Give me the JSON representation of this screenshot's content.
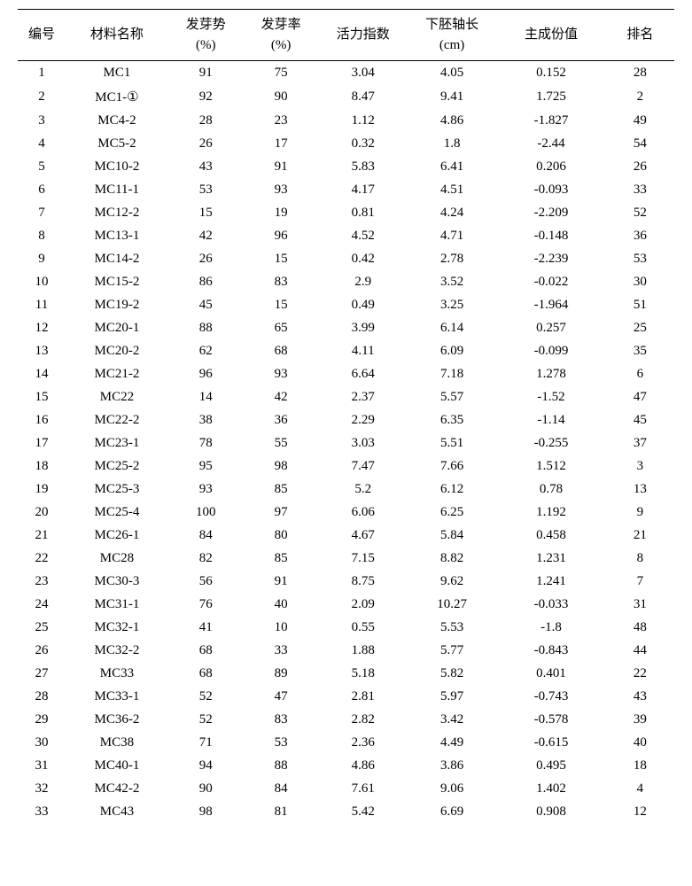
{
  "table": {
    "headers": {
      "idx": "编号",
      "name": "材料名称",
      "gp": "发芽势\n(%)",
      "gr": "发芽率\n(%)",
      "vi": "活力指数",
      "hl": "下胚轴长\n(cm)",
      "pc": "主成份值",
      "rank": "排名"
    },
    "rows": [
      {
        "idx": "1",
        "name": "MC1",
        "gp": "91",
        "gr": "75",
        "vi": "3.04",
        "hl": "4.05",
        "pc": "0.152",
        "rank": "28"
      },
      {
        "idx": "2",
        "name": "MC1-①",
        "gp": "92",
        "gr": "90",
        "vi": "8.47",
        "hl": "9.41",
        "pc": "1.725",
        "rank": "2"
      },
      {
        "idx": "3",
        "name": "MC4-2",
        "gp": "28",
        "gr": "23",
        "vi": "1.12",
        "hl": "4.86",
        "pc": "-1.827",
        "rank": "49"
      },
      {
        "idx": "4",
        "name": "MC5-2",
        "gp": "26",
        "gr": "17",
        "vi": "0.32",
        "hl": "1.8",
        "pc": "-2.44",
        "rank": "54"
      },
      {
        "idx": "5",
        "name": "MC10-2",
        "gp": "43",
        "gr": "91",
        "vi": "5.83",
        "hl": "6.41",
        "pc": "0.206",
        "rank": "26"
      },
      {
        "idx": "6",
        "name": "MC11-1",
        "gp": "53",
        "gr": "93",
        "vi": "4.17",
        "hl": "4.51",
        "pc": "-0.093",
        "rank": "33"
      },
      {
        "idx": "7",
        "name": "MC12-2",
        "gp": "15",
        "gr": "19",
        "vi": "0.81",
        "hl": "4.24",
        "pc": "-2.209",
        "rank": "52"
      },
      {
        "idx": "8",
        "name": "MC13-1",
        "gp": "42",
        "gr": "96",
        "vi": "4.52",
        "hl": "4.71",
        "pc": "-0.148",
        "rank": "36"
      },
      {
        "idx": "9",
        "name": "MC14-2",
        "gp": "26",
        "gr": "15",
        "vi": "0.42",
        "hl": "2.78",
        "pc": "-2.239",
        "rank": "53"
      },
      {
        "idx": "10",
        "name": "MC15-2",
        "gp": "86",
        "gr": "83",
        "vi": "2.9",
        "hl": "3.52",
        "pc": "-0.022",
        "rank": "30"
      },
      {
        "idx": "11",
        "name": "MC19-2",
        "gp": "45",
        "gr": "15",
        "vi": "0.49",
        "hl": "3.25",
        "pc": "-1.964",
        "rank": "51"
      },
      {
        "idx": "12",
        "name": "MC20-1",
        "gp": "88",
        "gr": "65",
        "vi": "3.99",
        "hl": "6.14",
        "pc": "0.257",
        "rank": "25"
      },
      {
        "idx": "13",
        "name": "MC20-2",
        "gp": "62",
        "gr": "68",
        "vi": "4.11",
        "hl": "6.09",
        "pc": "-0.099",
        "rank": "35"
      },
      {
        "idx": "14",
        "name": "MC21-2",
        "gp": "96",
        "gr": "93",
        "vi": "6.64",
        "hl": "7.18",
        "pc": "1.278",
        "rank": "6"
      },
      {
        "idx": "15",
        "name": "MC22",
        "gp": "14",
        "gr": "42",
        "vi": "2.37",
        "hl": "5.57",
        "pc": "-1.52",
        "rank": "47"
      },
      {
        "idx": "16",
        "name": "MC22-2",
        "gp": "38",
        "gr": "36",
        "vi": "2.29",
        "hl": "6.35",
        "pc": "-1.14",
        "rank": "45"
      },
      {
        "idx": "17",
        "name": "MC23-1",
        "gp": "78",
        "gr": "55",
        "vi": "3.03",
        "hl": "5.51",
        "pc": "-0.255",
        "rank": "37"
      },
      {
        "idx": "18",
        "name": "MC25-2",
        "gp": "95",
        "gr": "98",
        "vi": "7.47",
        "hl": "7.66",
        "pc": "1.512",
        "rank": "3"
      },
      {
        "idx": "19",
        "name": "MC25-3",
        "gp": "93",
        "gr": "85",
        "vi": "5.2",
        "hl": "6.12",
        "pc": "0.78",
        "rank": "13"
      },
      {
        "idx": "20",
        "name": "MC25-4",
        "gp": "100",
        "gr": "97",
        "vi": "6.06",
        "hl": "6.25",
        "pc": "1.192",
        "rank": "9"
      },
      {
        "idx": "21",
        "name": "MC26-1",
        "gp": "84",
        "gr": "80",
        "vi": "4.67",
        "hl": "5.84",
        "pc": "0.458",
        "rank": "21"
      },
      {
        "idx": "22",
        "name": "MC28",
        "gp": "82",
        "gr": "85",
        "vi": "7.15",
        "hl": "8.82",
        "pc": "1.231",
        "rank": "8"
      },
      {
        "idx": "23",
        "name": "MC30-3",
        "gp": "56",
        "gr": "91",
        "vi": "8.75",
        "hl": "9.62",
        "pc": "1.241",
        "rank": "7"
      },
      {
        "idx": "24",
        "name": "MC31-1",
        "gp": "76",
        "gr": "40",
        "vi": "2.09",
        "hl": "10.27",
        "pc": "-0.033",
        "rank": "31"
      },
      {
        "idx": "25",
        "name": "MC32-1",
        "gp": "41",
        "gr": "10",
        "vi": "0.55",
        "hl": "5.53",
        "pc": "-1.8",
        "rank": "48"
      },
      {
        "idx": "26",
        "name": "MC32-2",
        "gp": "68",
        "gr": "33",
        "vi": "1.88",
        "hl": "5.77",
        "pc": "-0.843",
        "rank": "44"
      },
      {
        "idx": "27",
        "name": "MC33",
        "gp": "68",
        "gr": "89",
        "vi": "5.18",
        "hl": "5.82",
        "pc": "0.401",
        "rank": "22"
      },
      {
        "idx": "28",
        "name": "MC33-1",
        "gp": "52",
        "gr": "47",
        "vi": "2.81",
        "hl": "5.97",
        "pc": "-0.743",
        "rank": "43"
      },
      {
        "idx": "29",
        "name": "MC36-2",
        "gp": "52",
        "gr": "83",
        "vi": "2.82",
        "hl": "3.42",
        "pc": "-0.578",
        "rank": "39"
      },
      {
        "idx": "30",
        "name": "MC38",
        "gp": "71",
        "gr": "53",
        "vi": "2.36",
        "hl": "4.49",
        "pc": "-0.615",
        "rank": "40"
      },
      {
        "idx": "31",
        "name": "MC40-1",
        "gp": "94",
        "gr": "88",
        "vi": "4.86",
        "hl": "3.86",
        "pc": "0.495",
        "rank": "18"
      },
      {
        "idx": "32",
        "name": "MC42-2",
        "gp": "90",
        "gr": "84",
        "vi": "7.61",
        "hl": "9.06",
        "pc": "1.402",
        "rank": "4"
      },
      {
        "idx": "33",
        "name": "MC43",
        "gp": "98",
        "gr": "81",
        "vi": "5.42",
        "hl": "6.69",
        "pc": "0.908",
        "rank": "12"
      }
    ]
  }
}
